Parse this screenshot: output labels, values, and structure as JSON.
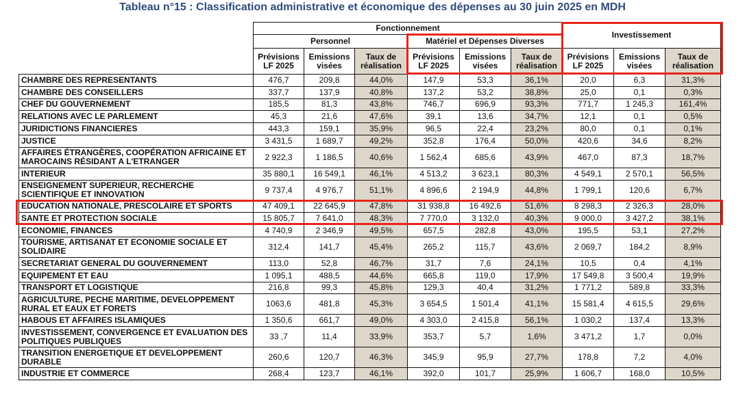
{
  "title": "Tableau n°15 : Classification administrative et économique des dépenses au 30 juin 2025 en MDH",
  "header": {
    "fonctionnement": "Fonctionnement",
    "personnel": "Personnel",
    "materiel": "Matériel et Dépenses Diverses",
    "investissement": "Investissement",
    "col_prev": "Prévisions LF 2025",
    "col_emis": "Emissions visées",
    "col_taux": "Taux de réalisation"
  },
  "colors": {
    "title": "#2f4b7c",
    "shade": "#ddd7cb",
    "highlight": "#e8231b"
  },
  "rows": [
    [
      "CHAMBRE DES REPRESENTANTS",
      "476,7",
      "209,8",
      "44,0%",
      "147,9",
      "53,3",
      "36,1%",
      "20,0",
      "6,3",
      "31,3%"
    ],
    [
      "CHAMBRE DES CONSEILLERS",
      "337,7",
      "137,9",
      "40,8%",
      "137,2",
      "53,2",
      "38,8%",
      "25,0",
      "0,1",
      "0,3%"
    ],
    [
      "CHEF DU GOUVERNEMENT",
      "185,5",
      "81,3",
      "43,8%",
      "746,7",
      "696,9",
      "93,3%",
      "771,7",
      "1 245,3",
      "161,4%"
    ],
    [
      "RELATIONS AVEC LE PARLEMENT",
      "45,3",
      "21,6",
      "47,6%",
      "39,1",
      "13,6",
      "34,7%",
      "12,1",
      "0,1",
      "0,5%"
    ],
    [
      "JURIDICTIONS FINANCIERES",
      "443,3",
      "159,1",
      "35,9%",
      "96,5",
      "22,4",
      "23,2%",
      "80,0",
      "0,1",
      "0,1%"
    ],
    [
      "JUSTICE",
      "3 431,5",
      "1 689,7",
      "49,2%",
      "352,8",
      "176,4",
      "50,0%",
      "420,6",
      "34,6",
      "8,2%"
    ],
    [
      "AFFAIRES ÉTRANGÈRES, COOPÉRATION AFRICAINE ET MAROCAINS RÉSIDANT A L'ETRANGER",
      "2 922,3",
      "1 186,5",
      "40,6%",
      "1 562,4",
      "685,6",
      "43,9%",
      "467,0",
      "87,3",
      "18,7%"
    ],
    [
      "INTERIEUR",
      "35 880,1",
      "16 549,1",
      "46,1%",
      "4 513,2",
      "3 623,1",
      "80,3%",
      "4 549,1",
      "2 570,1",
      "56,5%"
    ],
    [
      "ENSEIGNEMENT SUPERIEUR, RECHERCHE SCIENTIFIQUE ET INNOVATION",
      "9 737,4",
      "4 976,7",
      "51,1%",
      "4 896,6",
      "2 194,9",
      "44,8%",
      "1 799,1",
      "120,6",
      "6,7%"
    ],
    [
      "EDUCATION NATIONALE, PRESCOLAIRE ET SPORTS",
      "47 409,1",
      "22 645,9",
      "47,8%",
      "31 938,8",
      "16 492,6",
      "51,6%",
      "8 298,3",
      "2 326,3",
      "28,0%"
    ],
    [
      "SANTE ET PROTECTION SOCIALE",
      "15 805,7",
      "7 641,0",
      "48,3%",
      "7 770,0",
      "3 132,0",
      "40,3%",
      "9 000,0",
      "3 427,2",
      "38,1%"
    ],
    [
      "ECONOMIE, FINANCES",
      "4 740,9",
      "2 346,9",
      "49,5%",
      "657,5",
      "282,8",
      "43,0%",
      "195,5",
      "53,1",
      "27,2%"
    ],
    [
      "TOURISME, ARTISANAT ET ECONOMIE SOCIALE ET SOLIDAIRE",
      "312,4",
      "141,7",
      "45,4%",
      "265,2",
      "115,7",
      "43,6%",
      "2 069,7",
      "184,2",
      "8,9%"
    ],
    [
      "SECRETARIAT GENERAL DU GOUVERNEMENT",
      "113,0",
      "52,8",
      "46,7%",
      "31,7",
      "7,6",
      "24,1%",
      "10,5",
      "0,4",
      "4,1%"
    ],
    [
      "EQUIPEMENT ET EAU",
      "1 095,1",
      "488,5",
      "44,6%",
      "665,8",
      "119,0",
      "17,9%",
      "17 549,8",
      "3 500,4",
      "19,9%"
    ],
    [
      "TRANSPORT ET LOGISTIQUE",
      "216,8",
      "99,3",
      "45,8%",
      "129,3",
      "40,4",
      "31,2%",
      "1 771,2",
      "589,8",
      "33,3%"
    ],
    [
      "AGRICULTURE, PECHE MARITIME, DEVELOPPEMENT RURAL ET EAUX ET FORETS",
      "1063,6",
      "481,8",
      "45,3%",
      "3 654,5",
      "1 501,4",
      "41,1%",
      "15 581,4",
      "4 615,5",
      "29,6%"
    ],
    [
      "HABOUS ET AFFAIRES ISLAMIQUES",
      "1 350,6",
      "661,7",
      "49,0%",
      "4 303,0",
      "2 415,8",
      "56,1%",
      "1 030,2",
      "137,4",
      "13,3%"
    ],
    [
      "INVESTISSEMENT, CONVERGENCE ET EVALUATION DES POLITIQUES PUBLIQUES",
      "33 ,7",
      "11,4",
      "33,9%",
      "353,7",
      "5,7",
      "1,6%",
      "3 471,2",
      "1,7",
      "0,0%"
    ],
    [
      "TRANSITION ENERGETIQUE ET DEVELOPPEMENT DURABLE",
      "260,6",
      "120,7",
      "46,3%",
      "345,9",
      "95,9",
      "27,7%",
      "178,8",
      "7,2",
      "4,0%"
    ],
    [
      "INDUSTRIE ET COMMERCE",
      "268,4",
      "123,7",
      "46,1%",
      "392,0",
      "101,7",
      "25,9%",
      "1 606,7",
      "168,0",
      "10,5%"
    ]
  ]
}
